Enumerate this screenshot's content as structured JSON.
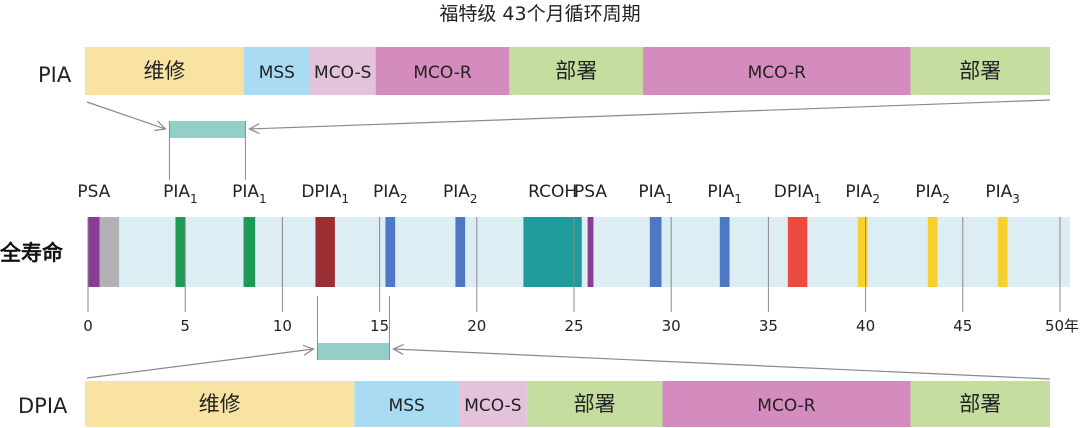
{
  "title": "福特级 43个月循环周期",
  "colors": {
    "maintenance": "#f8e3a2",
    "mss": "#a9dcf3",
    "mco_s": "#e3c3dc",
    "mco_r": "#d48bbd",
    "deploy": "#c5dea0",
    "life_bg": "#dceef4",
    "zoom_bar": "#93cfc9",
    "psa": "#8b3b96",
    "psa_gray": "#b0b0b5",
    "pia1": "#1f9a55",
    "dpia": "#9b2e33",
    "pia2": "#4f78c4",
    "rcoh": "#1f9b9b",
    "dpia_red": "#ec4a3f",
    "pia3": "#f6d02e",
    "tick": "#8a8a8a",
    "connector": "#8a8a8a"
  },
  "pia_row": {
    "label": "PIA",
    "segments": [
      {
        "label": "维修",
        "start": 0,
        "end": 8.2,
        "color": "maintenance"
      },
      {
        "label": "MSS",
        "start": 8.2,
        "end": 11.6,
        "color": "mss"
      },
      {
        "label": "MCO-S",
        "start": 11.6,
        "end": 15.0,
        "color": "mco_s"
      },
      {
        "label": "MCO-R",
        "start": 15.0,
        "end": 21.9,
        "color": "mco_r"
      },
      {
        "label": "部署",
        "start": 21.9,
        "end": 28.8,
        "color": "deploy"
      },
      {
        "label": "MCO-R",
        "start": 28.8,
        "end": 42.6,
        "color": "mco_r"
      },
      {
        "label": "部署",
        "start": 42.6,
        "end": 49.8,
        "color": "deploy"
      }
    ]
  },
  "life_row": {
    "label": "全寿命",
    "axis_unit": "年",
    "axis_range": [
      0,
      50
    ],
    "ticks": [
      0,
      5,
      10,
      15,
      20,
      25,
      30,
      35,
      40,
      45,
      50
    ],
    "events": [
      {
        "label": "PSA",
        "sub": "",
        "start": 0.0,
        "end": 0.6,
        "color": "psa"
      },
      {
        "label": "",
        "sub": "",
        "start": 0.6,
        "end": 1.6,
        "color": "psa_gray"
      },
      {
        "label": "PIA",
        "sub": "1",
        "start": 4.5,
        "end": 5.0,
        "color": "pia1"
      },
      {
        "label": "PIA",
        "sub": "1",
        "start": 8.0,
        "end": 8.6,
        "color": "pia1"
      },
      {
        "label": "DPIA",
        "sub": "1",
        "start": 11.7,
        "end": 12.7,
        "color": "dpia"
      },
      {
        "label": "PIA",
        "sub": "2",
        "start": 15.3,
        "end": 15.8,
        "color": "pia2"
      },
      {
        "label": "PIA",
        "sub": "2",
        "start": 18.9,
        "end": 19.4,
        "color": "pia2"
      },
      {
        "label": "RCOH",
        "sub": "",
        "start": 22.4,
        "end": 25.4,
        "color": "rcoh"
      },
      {
        "label": "PSA",
        "sub": "",
        "start": 25.7,
        "end": 26.0,
        "color": "psa"
      },
      {
        "label": "PIA",
        "sub": "1",
        "start": 28.9,
        "end": 29.5,
        "color": "pia2"
      },
      {
        "label": "PIA",
        "sub": "1",
        "start": 32.5,
        "end": 33.0,
        "color": "pia2"
      },
      {
        "label": "DPIA",
        "sub": "1",
        "start": 36.0,
        "end": 37.0,
        "color": "dpia_red"
      },
      {
        "label": "PIA",
        "sub": "2",
        "start": 39.6,
        "end": 40.1,
        "color": "pia3"
      },
      {
        "label": "PIA",
        "sub": "2",
        "start": 43.2,
        "end": 43.7,
        "color": "pia3"
      },
      {
        "label": "PIA",
        "sub": "3",
        "start": 46.8,
        "end": 47.3,
        "color": "pia3"
      }
    ]
  },
  "dpia_row": {
    "label": "DPIA",
    "segments": [
      {
        "label": "维修",
        "start": 0,
        "end": 13.9,
        "color": "maintenance"
      },
      {
        "label": "MSS",
        "start": 13.9,
        "end": 19.3,
        "color": "mss"
      },
      {
        "label": "MCO-S",
        "start": 19.3,
        "end": 22.8,
        "color": "mco_s"
      },
      {
        "label": "部署",
        "start": 22.8,
        "end": 29.8,
        "color": "deploy"
      },
      {
        "label": "MCO-R",
        "start": 29.8,
        "end": 42.6,
        "color": "mco_r"
      },
      {
        "label": "部署",
        "start": 42.6,
        "end": 49.8,
        "color": "deploy"
      }
    ]
  },
  "zoom": {
    "pia_range": [
      4.6,
      8.2
    ],
    "dpia_range": [
      11.7,
      15.3
    ]
  }
}
